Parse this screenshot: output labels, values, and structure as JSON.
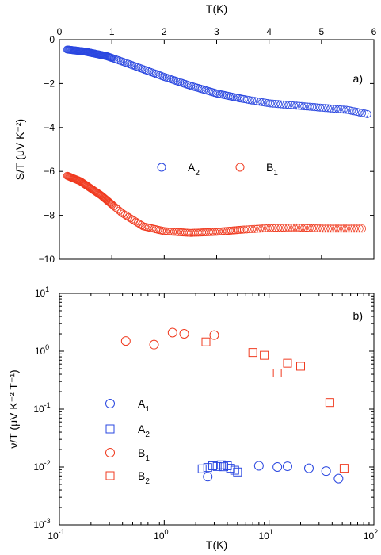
{
  "colors": {
    "blue": "#2a47e0",
    "red": "#f03b20",
    "axis": "#000000"
  },
  "chart_data": [
    {
      "type": "scatter",
      "panel_label": "a)",
      "xlabel": "T(K)",
      "ylabel": "S/T  (μV K⁻²)",
      "xlim": [
        0,
        6
      ],
      "ylim": [
        -10,
        0
      ],
      "x_axis_position": "top",
      "xticks": [
        "0",
        "1",
        "2",
        "3",
        "4",
        "5",
        "6"
      ],
      "yticks": [
        "0",
        "−2",
        "−4",
        "−6",
        "−8",
        "−10"
      ],
      "legend": {
        "position": "center",
        "entries": [
          "A",
          "B"
        ],
        "subs": [
          "2",
          "1"
        ]
      },
      "series": [
        {
          "name": "A2",
          "marker": "circle",
          "color": "#2a47e0",
          "curve": [
            [
              0.15,
              -0.45
            ],
            [
              0.5,
              -0.55
            ],
            [
              0.9,
              -0.75
            ],
            [
              1.2,
              -1.0
            ],
            [
              1.6,
              -1.35
            ],
            [
              2.0,
              -1.7
            ],
            [
              2.5,
              -2.1
            ],
            [
              3.0,
              -2.45
            ],
            [
              3.5,
              -2.7
            ],
            [
              4.0,
              -2.9
            ],
            [
              4.5,
              -3.0
            ],
            [
              5.0,
              -3.1
            ],
            [
              5.5,
              -3.2
            ],
            [
              5.9,
              -3.4
            ]
          ]
        },
        {
          "name": "B1",
          "marker": "circle",
          "color": "#f03b20",
          "curve": [
            [
              0.15,
              -6.2
            ],
            [
              0.4,
              -6.45
            ],
            [
              0.8,
              -7.1
            ],
            [
              1.2,
              -7.9
            ],
            [
              1.6,
              -8.5
            ],
            [
              2.0,
              -8.72
            ],
            [
              2.5,
              -8.8
            ],
            [
              3.0,
              -8.75
            ],
            [
              3.5,
              -8.65
            ],
            [
              4.0,
              -8.58
            ],
            [
              4.5,
              -8.55
            ],
            [
              5.0,
              -8.6
            ],
            [
              5.5,
              -8.6
            ],
            [
              5.8,
              -8.6
            ]
          ]
        }
      ]
    },
    {
      "type": "scatter",
      "panel_label": "b)",
      "xlabel": "T(K)",
      "ylabel": "ν/T  (μV K⁻² T⁻¹)",
      "xscale": "log",
      "yscale": "log",
      "xlim": [
        0.1,
        100
      ],
      "ylim": [
        0.001,
        10
      ],
      "xticks": [
        {
          "base": "10",
          "exp": "-1"
        },
        {
          "base": "10",
          "exp": "0"
        },
        {
          "base": "10",
          "exp": "1"
        },
        {
          "base": "10",
          "exp": "2"
        }
      ],
      "yticks": [
        {
          "base": "10",
          "exp": "-3"
        },
        {
          "base": "10",
          "exp": "-2"
        },
        {
          "base": "10",
          "exp": "-1"
        },
        {
          "base": "10",
          "exp": "0"
        },
        {
          "base": "10",
          "exp": "1"
        }
      ],
      "legend": {
        "position": "left",
        "entries": [
          "A",
          "A",
          "B",
          "B"
        ],
        "subs": [
          "1",
          "2",
          "1",
          "2"
        ]
      },
      "series": [
        {
          "name": "A1",
          "marker": "circle",
          "color": "#2a47e0",
          "points": [
            [
              2.6,
              0.0068
            ],
            [
              8.0,
              0.0105
            ],
            [
              12.0,
              0.01
            ],
            [
              15.0,
              0.0103
            ],
            [
              24.0,
              0.0095
            ],
            [
              35.0,
              0.0085
            ],
            [
              46.0,
              0.0063
            ]
          ]
        },
        {
          "name": "A2",
          "marker": "square",
          "color": "#2a47e0",
          "points": [
            [
              2.3,
              0.0093
            ],
            [
              2.6,
              0.0098
            ],
            [
              2.9,
              0.0105
            ],
            [
              3.2,
              0.0102
            ],
            [
              3.5,
              0.0109
            ],
            [
              3.7,
              0.0101
            ],
            [
              4.0,
              0.0105
            ],
            [
              4.3,
              0.0095
            ],
            [
              4.7,
              0.0088
            ],
            [
              5.0,
              0.0082
            ]
          ]
        },
        {
          "name": "B1",
          "marker": "circle",
          "color": "#f03b20",
          "points": [
            [
              0.43,
              1.5
            ],
            [
              0.8,
              1.3
            ],
            [
              1.2,
              2.1
            ],
            [
              1.55,
              2.0
            ],
            [
              3.0,
              1.9
            ]
          ]
        },
        {
          "name": "B2",
          "marker": "square",
          "color": "#f03b20",
          "points": [
            [
              2.5,
              1.45
            ],
            [
              7.0,
              0.95
            ],
            [
              9.0,
              0.85
            ],
            [
              12.0,
              0.42
            ],
            [
              15.0,
              0.62
            ],
            [
              20.0,
              0.55
            ],
            [
              38.0,
              0.13
            ],
            [
              52.0,
              0.0095
            ]
          ]
        }
      ]
    }
  ]
}
